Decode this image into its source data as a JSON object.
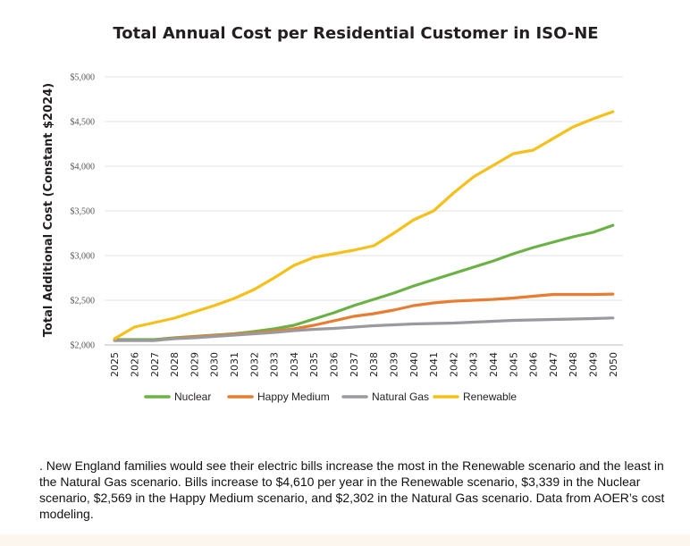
{
  "chart_data": {
    "type": "line",
    "title": "Total Annual Cost per Residential Customer in ISO-NE",
    "xlabel": "",
    "ylabel": "Total Additional Cost (Constant $2024)",
    "ylim": [
      2000,
      5000
    ],
    "yticks": [
      2000,
      2500,
      3000,
      3500,
      4000,
      4500,
      5000
    ],
    "ytick_labels": [
      "$2,000",
      "$2,500",
      "$3,000",
      "$3,500",
      "$4,000",
      "$4,500",
      "$5,000"
    ],
    "grid": "horizontal",
    "legend_position": "bottom",
    "x": [
      2025,
      2026,
      2027,
      2028,
      2029,
      2030,
      2031,
      2032,
      2033,
      2034,
      2035,
      2036,
      2037,
      2038,
      2039,
      2040,
      2041,
      2042,
      2043,
      2044,
      2045,
      2046,
      2047,
      2048,
      2049,
      2050
    ],
    "x_labels": [
      "2025",
      "2026",
      "2027",
      "2028",
      "2029",
      "2030",
      "2031",
      "2032",
      "2033",
      "2034",
      "2035",
      "2036",
      "2037",
      "2038",
      "2039",
      "2040",
      "2041",
      "2042",
      "2043",
      "2044",
      "2045",
      "2046",
      "2047",
      "2048",
      "2049",
      "2050"
    ],
    "series": [
      {
        "name": "Nuclear",
        "color": "#6ab245",
        "values": [
          2060,
          2060,
          2060,
          2080,
          2095,
          2110,
          2125,
          2150,
          2180,
          2220,
          2290,
          2360,
          2440,
          2510,
          2580,
          2660,
          2730,
          2800,
          2870,
          2940,
          3020,
          3090,
          3150,
          3210,
          3260,
          3339
        ]
      },
      {
        "name": "Happy Medium",
        "color": "#e87d31",
        "values": [
          2050,
          2050,
          2050,
          2075,
          2090,
          2105,
          2120,
          2135,
          2155,
          2180,
          2220,
          2270,
          2320,
          2350,
          2390,
          2440,
          2470,
          2490,
          2500,
          2510,
          2525,
          2545,
          2565,
          2565,
          2565,
          2569
        ]
      },
      {
        "name": "Natural Gas",
        "color": "#9a9a9e",
        "values": [
          2050,
          2050,
          2050,
          2070,
          2080,
          2095,
          2110,
          2125,
          2140,
          2160,
          2175,
          2185,
          2200,
          2215,
          2225,
          2235,
          2240,
          2245,
          2255,
          2265,
          2275,
          2280,
          2285,
          2290,
          2295,
          2302
        ]
      },
      {
        "name": "Renewable",
        "color": "#f5c01b",
        "values": [
          2070,
          2200,
          2250,
          2300,
          2370,
          2440,
          2520,
          2620,
          2750,
          2890,
          2980,
          3020,
          3060,
          3110,
          3250,
          3400,
          3500,
          3700,
          3880,
          4010,
          4140,
          4180,
          4310,
          4440,
          4530,
          4610
        ]
      }
    ]
  },
  "caption": {
    "text": ". New England families would see their electric bills increase the most in the Renewable scenario and the least in the Natural Gas scenario. Bills increase to $4,610 per year in the Renewable scenario, $3,339 in the Nuclear scenario, $2,569 in the Happy Medium scenario, and $2,302 in the Natural Gas scenario. Data from AOER’s cost modeling."
  }
}
